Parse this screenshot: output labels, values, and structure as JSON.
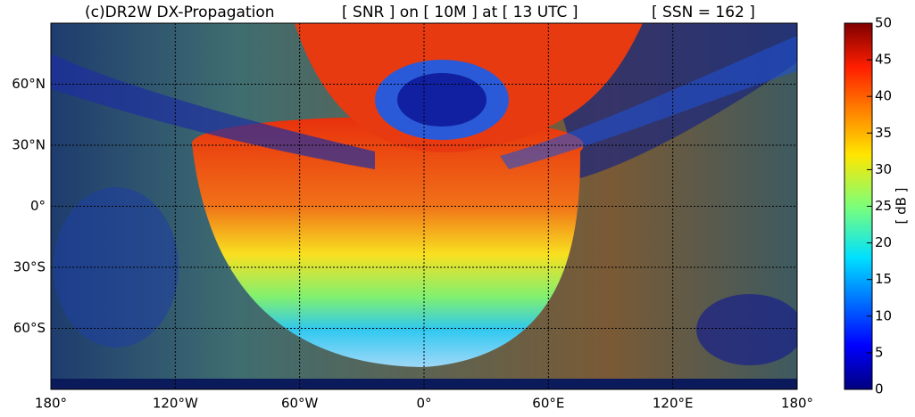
{
  "title": {
    "left": "(c)DR2W DX-Propagation",
    "center": "[ SNR ] on [ 10M ] at [ 13 UTC ]",
    "right": "[ SSN = 162 ]"
  },
  "map": {
    "lonlim": [
      -180,
      180
    ],
    "latlim": [
      -90,
      90
    ],
    "lon_ticks": [
      {
        "value": -180,
        "label": "180°"
      },
      {
        "value": -120,
        "label": "120°W"
      },
      {
        "value": -60,
        "label": "60°W"
      },
      {
        "value": 0,
        "label": "0°"
      },
      {
        "value": 60,
        "label": "60°E"
      },
      {
        "value": 120,
        "label": "120°E"
      },
      {
        "value": 180,
        "label": "180°"
      }
    ],
    "lat_ticks": [
      {
        "value": 60,
        "label": "60°N"
      },
      {
        "value": 30,
        "label": "30°N"
      },
      {
        "value": 0,
        "label": "0°"
      },
      {
        "value": -30,
        "label": "30°S"
      },
      {
        "value": -60,
        "label": "60°S"
      }
    ]
  },
  "colorbar": {
    "label": "[ dB ]",
    "lim": [
      0,
      50
    ],
    "ticks": [
      0,
      5,
      10,
      15,
      20,
      25,
      30,
      35,
      40,
      45,
      50
    ]
  }
}
